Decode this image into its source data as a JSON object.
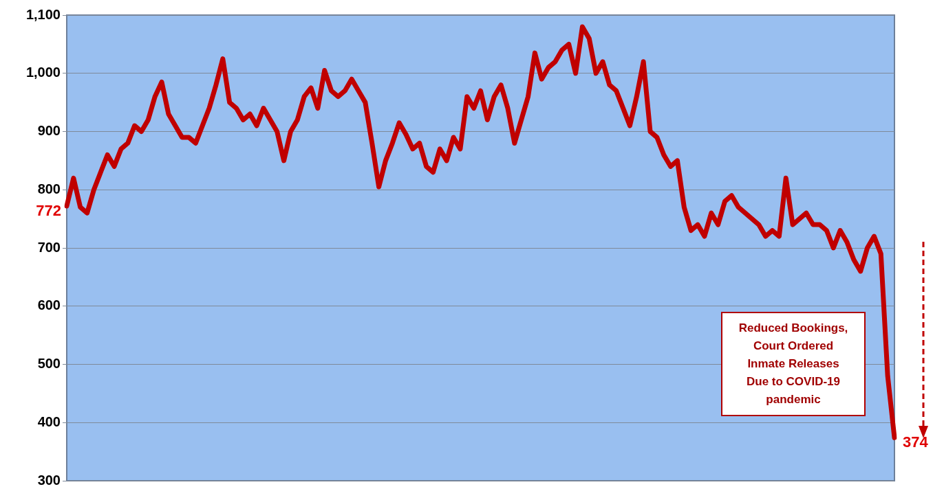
{
  "chart_data": {
    "type": "line",
    "categories": [
      null,
      null,
      null,
      null,
      null,
      null,
      null,
      null,
      null,
      null,
      null,
      null,
      null,
      null,
      null,
      null,
      null,
      null,
      null,
      null,
      null,
      null,
      null,
      null,
      null,
      null,
      null,
      null,
      null,
      null,
      null,
      null,
      null,
      null,
      null,
      null,
      null,
      null,
      null,
      null,
      null,
      null,
      null,
      null,
      null,
      null,
      null,
      null,
      null,
      null,
      null,
      null,
      null,
      null,
      null,
      null,
      null,
      null,
      null,
      null,
      null,
      null,
      null,
      null,
      null,
      null,
      null,
      null,
      null,
      null,
      null,
      null,
      null,
      null,
      null,
      null,
      null,
      null,
      null,
      null,
      null,
      null,
      null,
      null,
      null,
      null,
      null,
      null,
      null,
      null,
      null,
      null,
      null,
      null,
      null,
      null,
      null,
      null,
      null,
      null,
      null,
      null,
      null,
      null,
      null,
      null,
      null,
      null,
      null,
      null,
      null,
      null,
      null,
      null,
      null,
      null,
      null,
      null,
      null,
      null,
      null,
      null,
      null
    ],
    "series": [
      {
        "color": "#c00000",
        "values": [
          772,
          820,
          770,
          760,
          800,
          830,
          860,
          840,
          870,
          880,
          910,
          900,
          920,
          960,
          985,
          930,
          910,
          890,
          890,
          880,
          910,
          940,
          980,
          1025,
          950,
          940,
          920,
          930,
          910,
          940,
          920,
          900,
          850,
          900,
          920,
          960,
          975,
          940,
          1005,
          970,
          960,
          970,
          990,
          970,
          950,
          880,
          805,
          850,
          880,
          915,
          895,
          870,
          880,
          840,
          830,
          870,
          850,
          890,
          870,
          960,
          940,
          970,
          920,
          960,
          980,
          940,
          880,
          920,
          960,
          1035,
          990,
          1010,
          1020,
          1040,
          1050,
          1000,
          1080,
          1060,
          1000,
          1020,
          980,
          970,
          940,
          910,
          960,
          1020,
          900,
          890,
          860,
          840,
          850,
          770,
          730,
          740,
          720,
          760,
          740,
          780,
          790,
          770,
          760,
          750,
          740,
          720,
          730,
          720,
          820,
          740,
          750,
          760,
          740,
          740,
          730,
          700,
          730,
          710,
          680,
          660,
          700,
          720,
          690,
          480,
          374
        ]
      }
    ],
    "ylim": [
      300,
      1100
    ],
    "yticks": [
      300,
      400,
      500,
      600,
      700,
      {
        "value": 800,
        "label": "800"
      },
      900,
      {
        "value": 1000,
        "label": "1,000"
      },
      {
        "value": 1100,
        "label": "1,100"
      }
    ],
    "grid": "y",
    "marker": "none",
    "line_style": "solid",
    "legend": false,
    "annotations": [
      "772",
      "374",
      "Reduced Bookings, Court Ordered Inmate Releases Due to COVID-19 pandemic"
    ]
  }
}
